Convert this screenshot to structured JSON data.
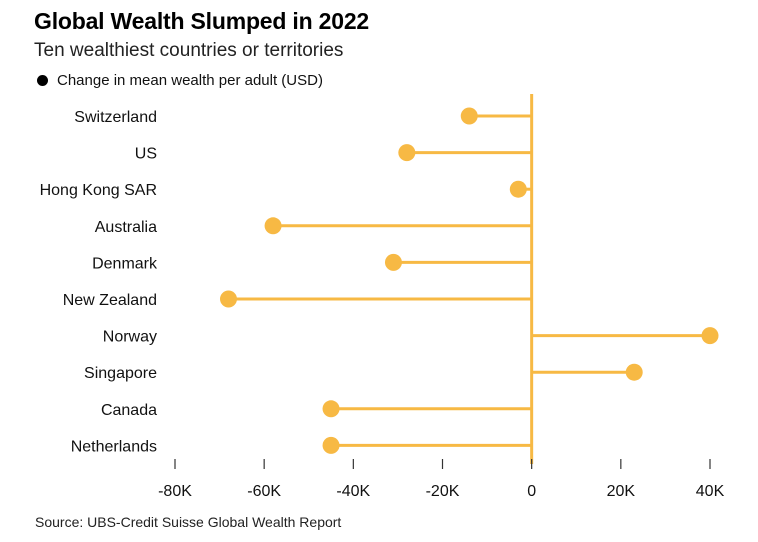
{
  "header": {
    "title": "Global Wealth Slumped in 2022",
    "subtitle": "Ten wealthiest countries or territories",
    "legend_label": "Change in mean wealth per adult (USD)"
  },
  "footer": {
    "source": "Source: UBS-Credit Suisse Global Wealth Report"
  },
  "colors": {
    "accent": "#F7B944",
    "text": "#111111"
  },
  "chart_data": {
    "type": "lollipop",
    "title": "Global Wealth Slumped in 2022",
    "subtitle": "Ten wealthiest countries or territories",
    "xlabel": "",
    "ylabel": "",
    "xlim": [
      -80000,
      40000
    ],
    "categories": [
      "Switzerland",
      "US",
      "Hong Kong SAR",
      "Australia",
      "Denmark",
      "New Zealand",
      "Norway",
      "Singapore",
      "Canada",
      "Netherlands"
    ],
    "series": [
      {
        "name": "Change in mean wealth per adult (USD)",
        "values": [
          -14000,
          -28000,
          -3000,
          -58000,
          -31000,
          -68000,
          40000,
          23000,
          -45000,
          -45000
        ]
      }
    ],
    "ticks": [
      -80000,
      -60000,
      -40000,
      -20000,
      0,
      20000,
      40000
    ],
    "tick_labels": [
      "-80K",
      "-60K",
      "-40K",
      "-20K",
      "0",
      "20K",
      "40K"
    ],
    "legend_position": "top-left"
  }
}
